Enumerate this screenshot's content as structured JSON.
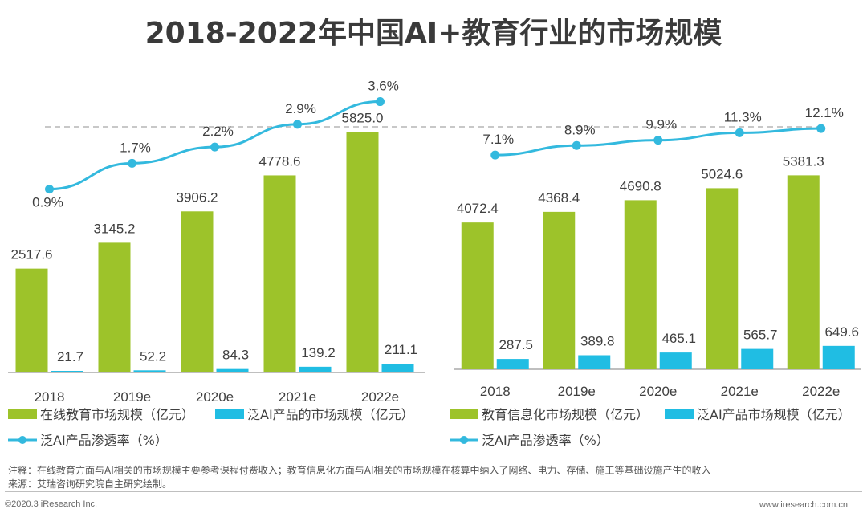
{
  "title": "2018-2022年中国AI+教育行业的市场规模",
  "colors": {
    "bar_main": "#9dc32a",
    "bar_ai": "#20bde3",
    "line": "#33b9de",
    "axis": "#7f7f7f",
    "dash": "#a6a6a6"
  },
  "chart_data": [
    {
      "type": "bar+line",
      "categories": [
        "2018",
        "2019e",
        "2020e",
        "2021e",
        "2022e"
      ],
      "series": [
        {
          "name": "在线教育市场规模（亿元）",
          "kind": "bar",
          "values": [
            2517.6,
            3145.2,
            3906.2,
            4778.6,
            5825.0
          ],
          "labels": [
            "2517.6",
            "3145.2",
            "3906.2",
            "4778.6",
            "5825.0"
          ]
        },
        {
          "name": "泛AI产品的市场规模（亿元）",
          "kind": "bar",
          "values": [
            21.7,
            52.2,
            84.3,
            139.2,
            211.1
          ],
          "labels": [
            "21.7",
            "52.2",
            "84.3",
            "139.2",
            "211.1"
          ]
        },
        {
          "name": "泛AI产品渗透率（%）",
          "kind": "line",
          "values": [
            0.9,
            1.7,
            2.2,
            2.9,
            3.6
          ],
          "labels": [
            "0.9%",
            "1.7%",
            "2.2%",
            "2.9%",
            "3.6%"
          ]
        }
      ],
      "ylim_bar": [
        0,
        6500
      ],
      "ylim_line": [
        0,
        4.3
      ]
    },
    {
      "type": "bar+line",
      "categories": [
        "2018",
        "2019e",
        "2020e",
        "2021e",
        "2022e"
      ],
      "series": [
        {
          "name": "教育信息化市场规模（亿元）",
          "kind": "bar",
          "values": [
            4072.4,
            4368.4,
            4690.8,
            5024.6,
            5381.3
          ],
          "labels": [
            "4072.4",
            "4368.4",
            "4690.8",
            "5024.6",
            "5381.3"
          ]
        },
        {
          "name": "泛AI产品市场规模（亿元）",
          "kind": "bar",
          "values": [
            287.5,
            389.8,
            465.1,
            565.7,
            649.6
          ],
          "labels": [
            "287.5",
            "389.8",
            "465.1",
            "565.7",
            "649.6"
          ]
        },
        {
          "name": "泛AI产品渗透率（%）",
          "kind": "line",
          "values": [
            7.1,
            8.9,
            9.9,
            11.3,
            12.1
          ],
          "labels": [
            "7.1%",
            "8.9%",
            "9.9%",
            "11.3%",
            "12.1%"
          ]
        }
      ],
      "ylim_bar": [
        0,
        7350
      ],
      "ylim_line": [
        0,
        14.8
      ]
    }
  ],
  "notes": {
    "note": "注释：在线教育方面与AI相关的市场规模主要参考课程付费收入；教育信息化方面与AI相关的市场规模在核算中纳入了网络、电力、存储、施工等基础设施产生的收入",
    "source": "来源：艾瑞咨询研究院自主研究绘制。"
  },
  "footer": {
    "left": "©2020.3 iResearch Inc.",
    "right": "www.iresearch.com.cn"
  }
}
